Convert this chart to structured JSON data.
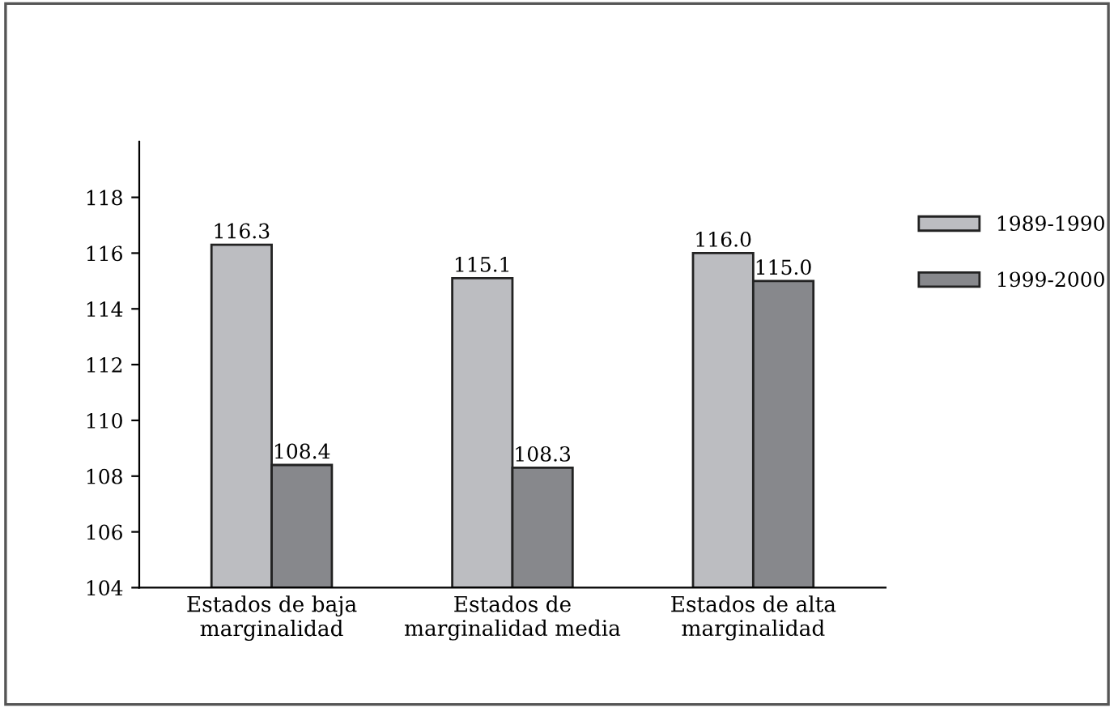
{
  "chart_data": {
    "type": "bar",
    "categories": [
      "Estados de baja\nmarginalidad",
      "Estados de\nmarginalidad media",
      "Estados de alta\nmarginalidad"
    ],
    "series": [
      {
        "name": "1989-1990",
        "color": "#bcbdc1",
        "values": [
          116.3,
          115.1,
          116.0
        ],
        "value_labels": [
          "116.3",
          "115.1",
          "116.0"
        ]
      },
      {
        "name": "1999-2000",
        "color": "#87888c",
        "values": [
          108.4,
          108.3,
          115.0
        ],
        "value_labels": [
          "108.4",
          "108.3",
          "115.0"
        ]
      }
    ],
    "ylim": [
      104,
      120
    ],
    "yticks": [
      104,
      106,
      108,
      110,
      112,
      114,
      116,
      118
    ],
    "legend": "right",
    "grid": false
  }
}
